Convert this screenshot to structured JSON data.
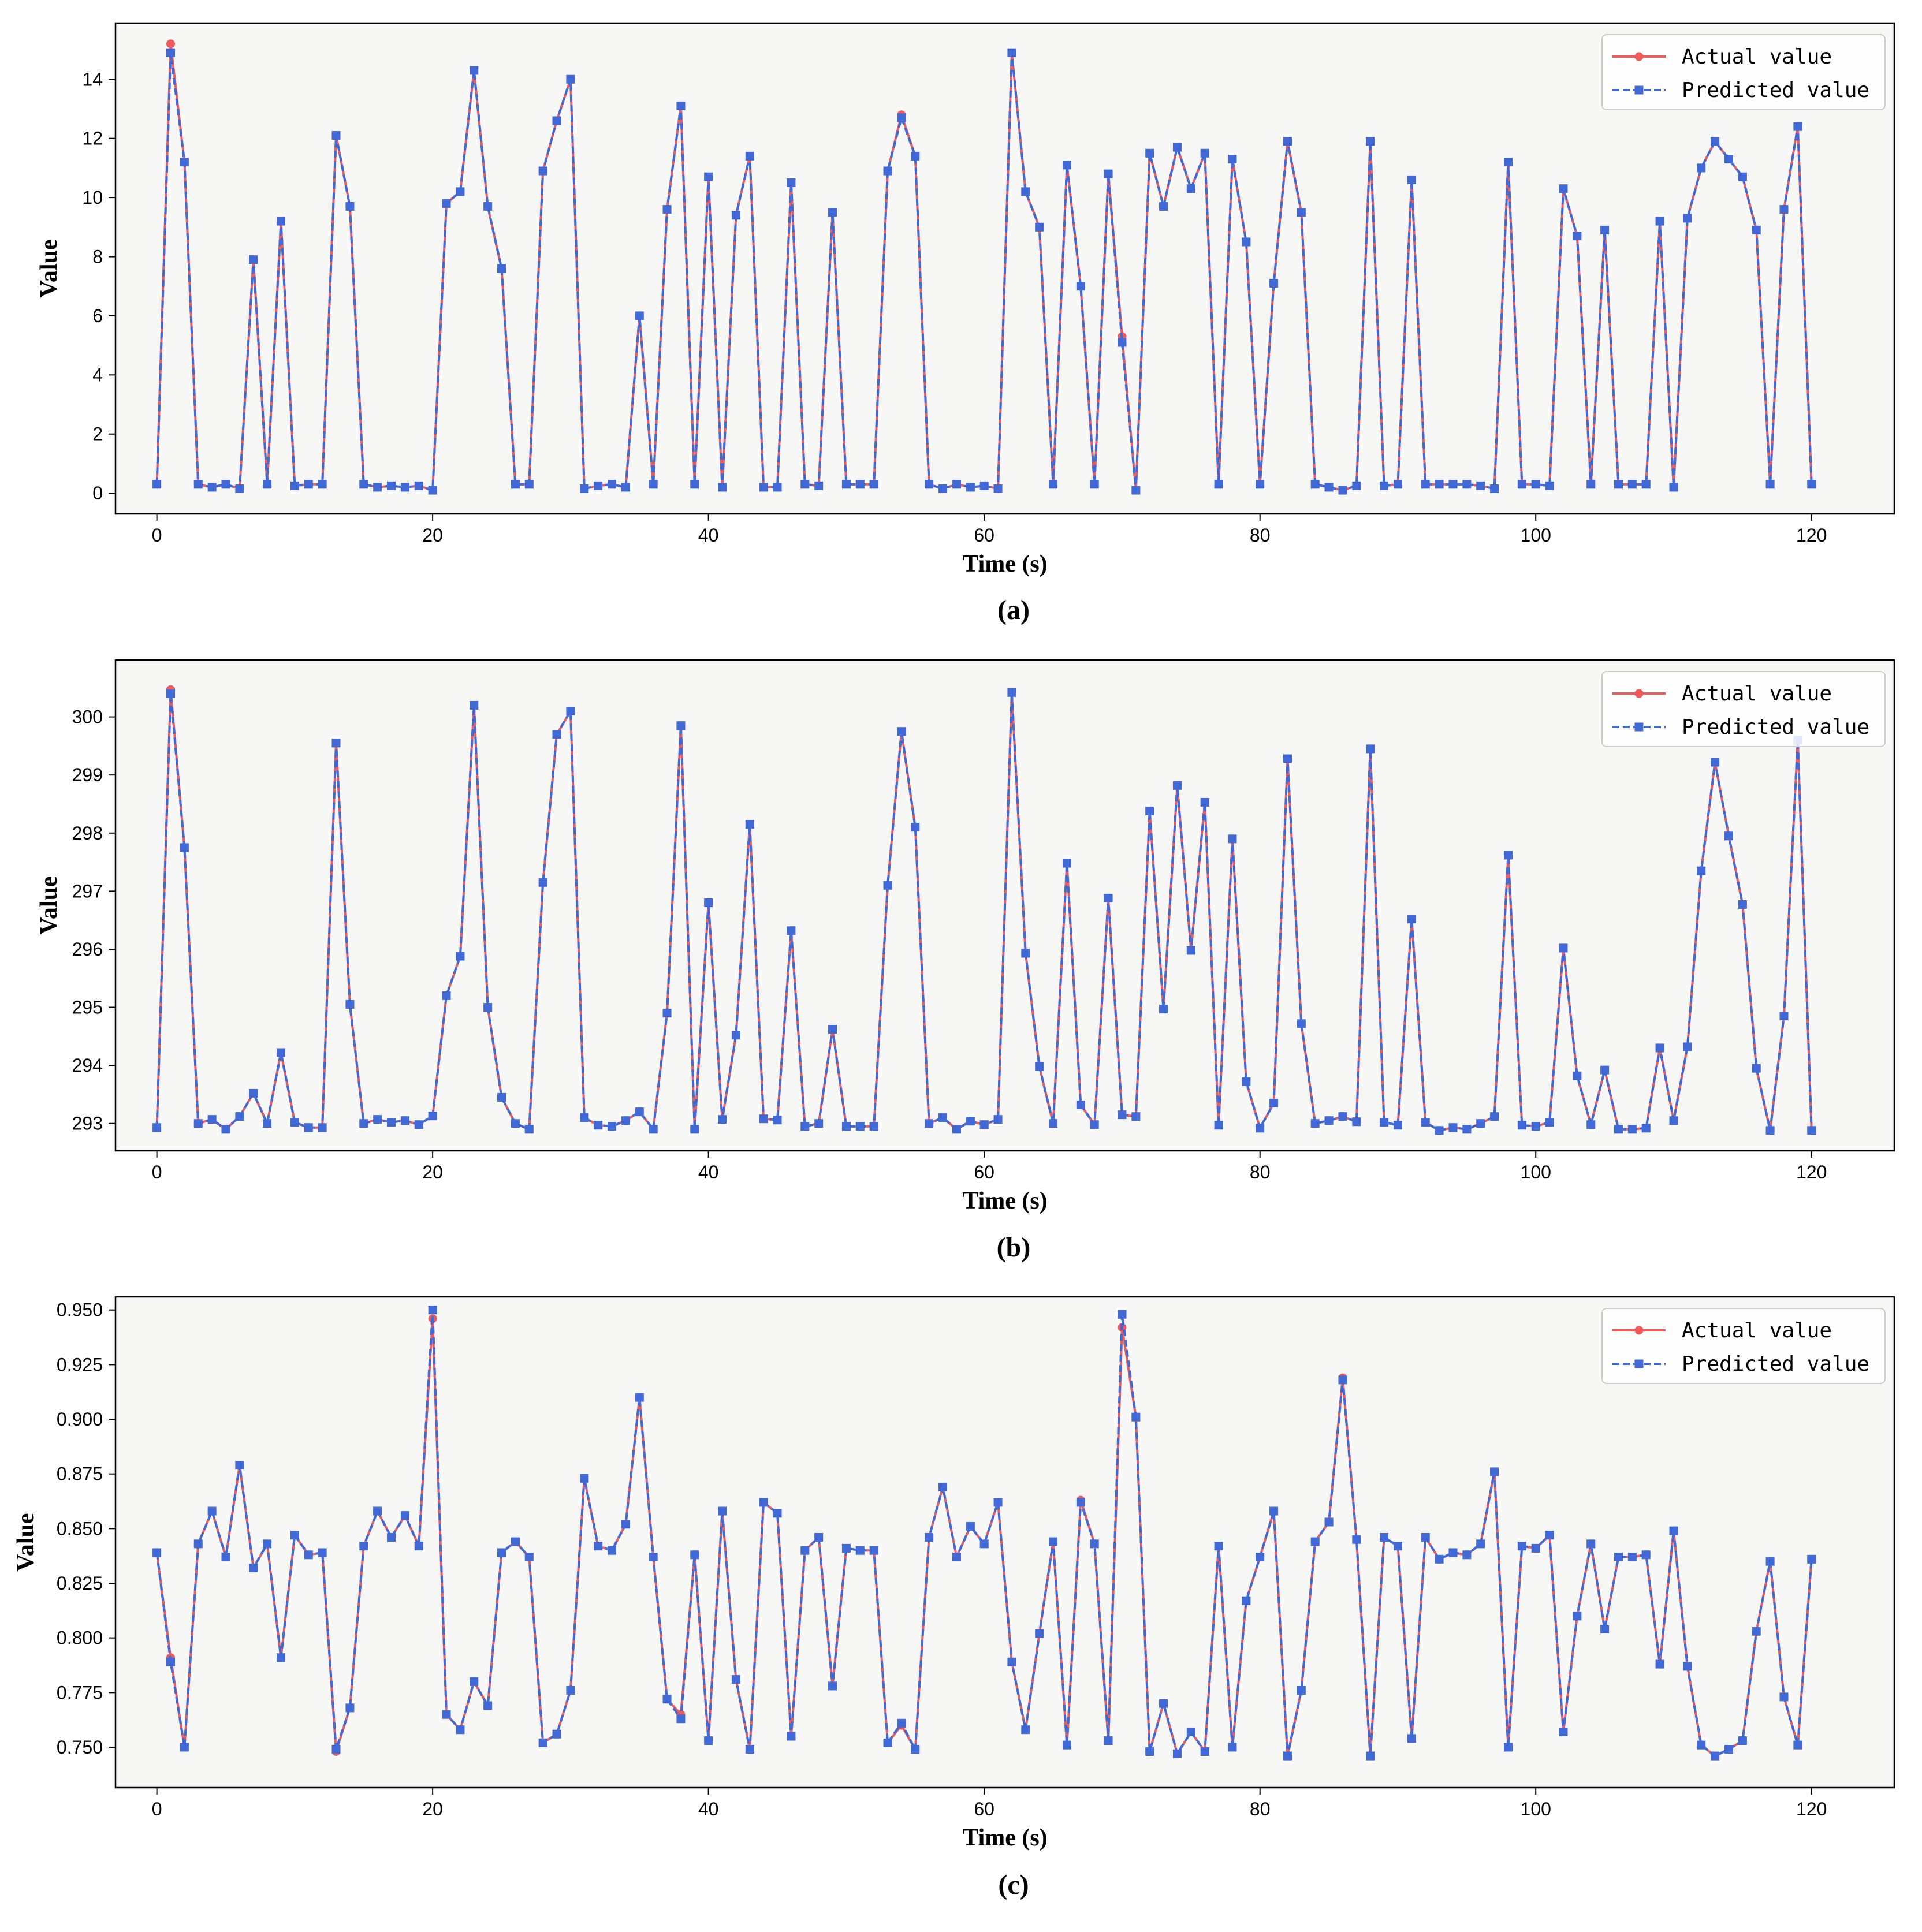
{
  "colors": {
    "actual": "#f05a5a",
    "predicted": "#4169d6",
    "plot_bg": "#f7f7f5",
    "frame": "#000000"
  },
  "chart_data": [
    {
      "panel_label": "(a)",
      "type": "line",
      "xlabel": "Time (s)",
      "ylabel": "Value",
      "xlim": [
        -3,
        126
      ],
      "ylim": [
        -0.7,
        15.9
      ],
      "xticks": [
        0,
        20,
        40,
        60,
        80,
        100,
        120
      ],
      "yticks": [
        0,
        2,
        4,
        6,
        8,
        10,
        12,
        14
      ],
      "ytick_labels": [
        "0",
        "2",
        "4",
        "6",
        "8",
        "10",
        "12",
        "14"
      ],
      "legend": "top-right",
      "series": [
        {
          "name": "Actual value",
          "marker": "circle",
          "linestyle": "solid",
          "values": [
            0.3,
            15.2,
            11.2,
            0.3,
            0.2,
            0.3,
            0.15,
            7.9,
            0.3,
            9.2,
            0.25,
            0.3,
            0.3,
            12.1,
            9.7,
            0.3,
            0.2,
            0.25,
            0.2,
            0.25,
            0.1,
            9.8,
            10.2,
            14.3,
            9.7,
            7.6,
            0.3,
            0.3,
            10.9,
            12.6,
            14.0,
            0.15,
            0.25,
            0.3,
            0.2,
            6.0,
            0.3,
            9.6,
            13.1,
            0.3,
            10.7,
            0.2,
            9.4,
            11.4,
            0.2,
            0.2,
            10.5,
            0.3,
            0.25,
            9.5,
            0.3,
            0.3,
            0.3,
            10.9,
            12.8,
            11.4,
            0.3,
            0.15,
            0.3,
            0.2,
            0.25,
            0.15,
            14.9,
            10.2,
            9.0,
            0.3,
            11.1,
            7.0,
            0.3,
            10.8,
            5.3,
            0.1,
            11.5,
            9.7,
            11.7,
            10.3,
            11.5,
            0.3,
            11.3,
            8.5,
            0.3,
            7.1,
            11.9,
            9.5,
            0.3,
            0.2,
            0.1,
            0.25,
            11.9,
            0.25,
            0.3,
            10.6,
            0.3,
            0.3,
            0.3,
            0.3,
            0.25,
            0.15,
            11.2,
            0.3,
            0.3,
            0.25,
            10.3,
            8.7,
            0.3,
            8.9,
            0.3,
            0.3,
            0.3,
            9.2,
            0.2,
            9.3,
            11.0,
            11.9,
            11.3,
            10.7,
            8.9,
            0.3,
            9.6,
            12.4,
            0.3
          ]
        },
        {
          "name": "Predicted value",
          "marker": "square",
          "linestyle": "dashed",
          "values": [
            0.3,
            14.9,
            11.2,
            0.3,
            0.2,
            0.3,
            0.15,
            7.9,
            0.3,
            9.2,
            0.25,
            0.3,
            0.3,
            12.1,
            9.7,
            0.3,
            0.2,
            0.25,
            0.2,
            0.25,
            0.1,
            9.8,
            10.2,
            14.3,
            9.7,
            7.6,
            0.3,
            0.3,
            10.9,
            12.6,
            14.0,
            0.15,
            0.25,
            0.3,
            0.2,
            6.0,
            0.3,
            9.6,
            13.1,
            0.3,
            10.7,
            0.2,
            9.4,
            11.4,
            0.2,
            0.2,
            10.5,
            0.3,
            0.25,
            9.5,
            0.3,
            0.3,
            0.3,
            10.9,
            12.7,
            11.4,
            0.3,
            0.15,
            0.3,
            0.2,
            0.25,
            0.15,
            14.9,
            10.2,
            9.0,
            0.3,
            11.1,
            7.0,
            0.3,
            10.8,
            5.1,
            0.1,
            11.5,
            9.7,
            11.7,
            10.3,
            11.5,
            0.3,
            11.3,
            8.5,
            0.3,
            7.1,
            11.9,
            9.5,
            0.3,
            0.2,
            0.1,
            0.25,
            11.9,
            0.25,
            0.3,
            10.6,
            0.3,
            0.3,
            0.3,
            0.3,
            0.25,
            0.15,
            11.2,
            0.3,
            0.3,
            0.25,
            10.3,
            8.7,
            0.3,
            8.9,
            0.3,
            0.3,
            0.3,
            9.2,
            0.2,
            9.3,
            11.0,
            11.9,
            11.3,
            10.7,
            8.9,
            0.3,
            9.6,
            12.4,
            0.3
          ]
        }
      ]
    },
    {
      "panel_label": "(b)",
      "type": "line",
      "xlabel": "Time (s)",
      "ylabel": "Value",
      "xlim": [
        -3,
        126
      ],
      "ylim": [
        292.53,
        300.98
      ],
      "xticks": [
        0,
        20,
        40,
        60,
        80,
        100,
        120
      ],
      "yticks": [
        293,
        294,
        295,
        296,
        297,
        298,
        299,
        300
      ],
      "ytick_labels": [
        "293",
        "294",
        "295",
        "296",
        "297",
        "298",
        "299",
        "300"
      ],
      "legend": "top-right",
      "series": [
        {
          "name": "Actual value",
          "marker": "circle",
          "linestyle": "solid",
          "values": [
            292.93,
            300.47,
            297.75,
            293.0,
            293.07,
            292.9,
            293.12,
            293.52,
            293.0,
            294.22,
            293.02,
            292.93,
            292.93,
            299.55,
            295.05,
            293.0,
            293.07,
            293.02,
            293.05,
            292.98,
            293.13,
            295.2,
            295.88,
            300.2,
            295.0,
            293.45,
            293.0,
            292.9,
            297.15,
            299.7,
            300.1,
            293.1,
            292.97,
            292.95,
            293.05,
            293.2,
            292.9,
            294.9,
            299.85,
            292.9,
            296.8,
            293.07,
            294.52,
            298.15,
            293.08,
            293.06,
            296.32,
            292.95,
            293.0,
            294.62,
            292.95,
            292.95,
            292.95,
            297.1,
            299.75,
            298.1,
            293.0,
            293.1,
            292.9,
            293.04,
            292.98,
            293.07,
            300.42,
            295.93,
            293.98,
            293.0,
            297.48,
            293.32,
            292.98,
            296.88,
            293.15,
            293.12,
            298.38,
            294.97,
            298.82,
            295.98,
            298.53,
            292.97,
            297.9,
            293.72,
            292.92,
            293.35,
            299.28,
            294.72,
            293.0,
            293.05,
            293.12,
            293.03,
            299.45,
            293.02,
            292.97,
            296.52,
            293.02,
            292.88,
            292.93,
            292.9,
            293.0,
            293.12,
            297.62,
            292.97,
            292.95,
            293.02,
            296.02,
            293.82,
            292.98,
            293.92,
            292.9,
            292.9,
            292.92,
            294.3,
            293.05,
            294.32,
            297.35,
            299.22,
            297.95,
            296.77,
            293.95,
            292.88,
            294.85,
            299.6,
            292.88
          ]
        },
        {
          "name": "Predicted value",
          "marker": "square",
          "linestyle": "dashed",
          "values": [
            292.93,
            300.4,
            297.75,
            293.0,
            293.07,
            292.9,
            293.12,
            293.52,
            293.0,
            294.22,
            293.02,
            292.93,
            292.93,
            299.55,
            295.05,
            293.0,
            293.07,
            293.02,
            293.05,
            292.98,
            293.13,
            295.2,
            295.88,
            300.2,
            295.0,
            293.45,
            293.0,
            292.9,
            297.15,
            299.7,
            300.1,
            293.1,
            292.97,
            292.95,
            293.05,
            293.2,
            292.9,
            294.9,
            299.85,
            292.9,
            296.8,
            293.07,
            294.52,
            298.15,
            293.08,
            293.06,
            296.32,
            292.95,
            293.0,
            294.62,
            292.95,
            292.95,
            292.95,
            297.1,
            299.75,
            298.1,
            293.0,
            293.1,
            292.9,
            293.04,
            292.98,
            293.07,
            300.42,
            295.93,
            293.98,
            293.0,
            297.48,
            293.32,
            292.98,
            296.88,
            293.15,
            293.12,
            298.38,
            294.97,
            298.82,
            295.98,
            298.53,
            292.97,
            297.9,
            293.72,
            292.92,
            293.35,
            299.28,
            294.72,
            293.0,
            293.05,
            293.12,
            293.03,
            299.45,
            293.02,
            292.97,
            296.52,
            293.02,
            292.88,
            292.93,
            292.9,
            293.0,
            293.12,
            297.62,
            292.97,
            292.95,
            293.02,
            296.02,
            293.82,
            292.98,
            293.92,
            292.9,
            292.9,
            292.92,
            294.3,
            293.05,
            294.32,
            297.35,
            299.22,
            297.95,
            296.77,
            293.95,
            292.88,
            294.85,
            299.6,
            292.88
          ]
        }
      ]
    },
    {
      "panel_label": "(c)",
      "type": "line",
      "xlabel": "Time (s)",
      "ylabel": "Value",
      "xlim": [
        -3,
        126
      ],
      "ylim": [
        0.7315,
        0.956
      ],
      "xticks": [
        0,
        20,
        40,
        60,
        80,
        100,
        120
      ],
      "yticks": [
        0.75,
        0.775,
        0.8,
        0.825,
        0.85,
        0.875,
        0.9,
        0.925,
        0.95
      ],
      "ytick_labels": [
        "0.750",
        "0.775",
        "0.800",
        "0.825",
        "0.850",
        "0.875",
        "0.900",
        "0.925",
        "0.950"
      ],
      "legend": "top-right",
      "series": [
        {
          "name": "Actual value",
          "marker": "circle",
          "linestyle": "solid",
          "values": [
            0.839,
            0.791,
            0.75,
            0.843,
            0.858,
            0.837,
            0.879,
            0.832,
            0.843,
            0.791,
            0.847,
            0.838,
            0.839,
            0.748,
            0.768,
            0.842,
            0.858,
            0.846,
            0.856,
            0.842,
            0.946,
            0.765,
            0.758,
            0.78,
            0.769,
            0.839,
            0.844,
            0.837,
            0.752,
            0.756,
            0.776,
            0.873,
            0.842,
            0.84,
            0.852,
            0.91,
            0.837,
            0.772,
            0.765,
            0.838,
            0.753,
            0.858,
            0.781,
            0.749,
            0.862,
            0.857,
            0.755,
            0.84,
            0.846,
            0.778,
            0.841,
            0.84,
            0.84,
            0.752,
            0.76,
            0.749,
            0.846,
            0.869,
            0.837,
            0.851,
            0.843,
            0.862,
            0.789,
            0.758,
            0.802,
            0.844,
            0.751,
            0.863,
            0.843,
            0.753,
            0.942,
            0.901,
            0.748,
            0.77,
            0.747,
            0.757,
            0.748,
            0.842,
            0.75,
            0.817,
            0.837,
            0.858,
            0.746,
            0.776,
            0.844,
            0.853,
            0.919,
            0.845,
            0.746,
            0.846,
            0.842,
            0.754,
            0.846,
            0.836,
            0.839,
            0.838,
            0.843,
            0.876,
            0.75,
            0.842,
            0.841,
            0.847,
            0.757,
            0.81,
            0.843,
            0.804,
            0.837,
            0.837,
            0.838,
            0.788,
            0.849,
            0.787,
            0.751,
            0.746,
            0.749,
            0.753,
            0.803,
            0.835,
            0.773,
            0.751,
            0.836
          ]
        },
        {
          "name": "Predicted value",
          "marker": "square",
          "linestyle": "dashed",
          "values": [
            0.839,
            0.789,
            0.75,
            0.843,
            0.858,
            0.837,
            0.879,
            0.832,
            0.843,
            0.791,
            0.847,
            0.838,
            0.839,
            0.749,
            0.768,
            0.842,
            0.858,
            0.846,
            0.856,
            0.842,
            0.95,
            0.765,
            0.758,
            0.78,
            0.769,
            0.839,
            0.844,
            0.837,
            0.752,
            0.756,
            0.776,
            0.873,
            0.842,
            0.84,
            0.852,
            0.91,
            0.837,
            0.772,
            0.763,
            0.838,
            0.753,
            0.858,
            0.781,
            0.749,
            0.862,
            0.857,
            0.755,
            0.84,
            0.846,
            0.778,
            0.841,
            0.84,
            0.84,
            0.752,
            0.761,
            0.749,
            0.846,
            0.869,
            0.837,
            0.851,
            0.843,
            0.862,
            0.789,
            0.758,
            0.802,
            0.844,
            0.751,
            0.862,
            0.843,
            0.753,
            0.948,
            0.901,
            0.748,
            0.77,
            0.747,
            0.757,
            0.748,
            0.842,
            0.75,
            0.817,
            0.837,
            0.858,
            0.746,
            0.776,
            0.844,
            0.853,
            0.918,
            0.845,
            0.746,
            0.846,
            0.842,
            0.754,
            0.846,
            0.836,
            0.839,
            0.838,
            0.843,
            0.876,
            0.75,
            0.842,
            0.841,
            0.847,
            0.757,
            0.81,
            0.843,
            0.804,
            0.837,
            0.837,
            0.838,
            0.788,
            0.849,
            0.787,
            0.751,
            0.746,
            0.749,
            0.753,
            0.803,
            0.835,
            0.773,
            0.751,
            0.836
          ]
        }
      ]
    }
  ]
}
